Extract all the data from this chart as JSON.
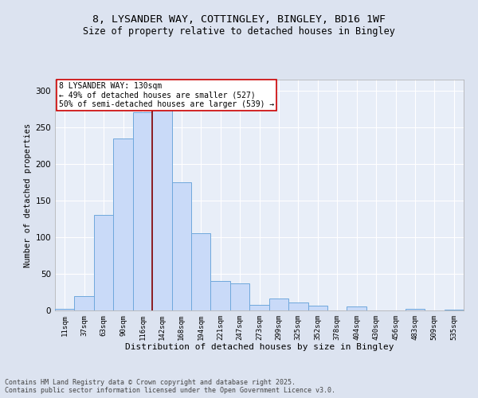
{
  "title_line1": "8, LYSANDER WAY, COTTINGLEY, BINGLEY, BD16 1WF",
  "title_line2": "Size of property relative to detached houses in Bingley",
  "xlabel": "Distribution of detached houses by size in Bingley",
  "ylabel": "Number of detached properties",
  "categories": [
    "11sqm",
    "37sqm",
    "63sqm",
    "90sqm",
    "116sqm",
    "142sqm",
    "168sqm",
    "194sqm",
    "221sqm",
    "247sqm",
    "273sqm",
    "299sqm",
    "325sqm",
    "352sqm",
    "378sqm",
    "404sqm",
    "430sqm",
    "456sqm",
    "483sqm",
    "509sqm",
    "535sqm"
  ],
  "bar_heights": [
    2,
    20,
    130,
    235,
    270,
    280,
    175,
    105,
    40,
    37,
    8,
    16,
    11,
    7,
    0,
    5,
    0,
    0,
    2,
    0,
    1
  ],
  "bar_color": "#c9daf8",
  "bar_edge_color": "#6fa8dc",
  "vline_color": "#8b0000",
  "annotation_text": "8 LYSANDER WAY: 130sqm\n← 49% of detached houses are smaller (527)\n50% of semi-detached houses are larger (539) →",
  "annotation_box_color": "white",
  "annotation_box_edge": "#cc0000",
  "ylim": [
    0,
    315
  ],
  "yticks": [
    0,
    50,
    100,
    150,
    200,
    250,
    300
  ],
  "background_color": "#dce3f0",
  "plot_bg_color": "#e8eef8",
  "footer_line1": "Contains HM Land Registry data © Crown copyright and database right 2025.",
  "footer_line2": "Contains public sector information licensed under the Open Government Licence v3.0."
}
